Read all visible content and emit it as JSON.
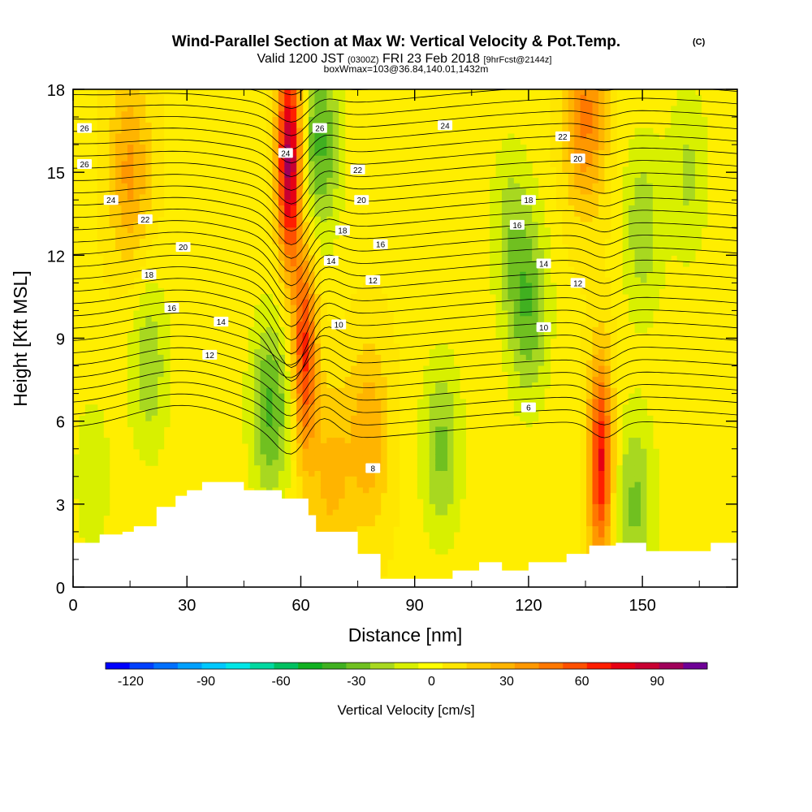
{
  "chart_data": {
    "type": "heatmap",
    "title": "Wind-Parallel Section at Max W: Vertical Velocity & Pot.Temp.",
    "title_mark": "(C)",
    "subtitle": {
      "prefix": "Valid 1200 JST",
      "zulu": "(0300Z)",
      "date": "FRI 23 Feb 2018",
      "forecast": "[9hrFcst@2144z]"
    },
    "box_info": "boxWmax=103@36.84,140.01,1432m",
    "xlabel": "Distance [nm]",
    "ylabel": "Height [Kft MSL]",
    "xlim": [
      0,
      175
    ],
    "ylim": [
      0,
      18
    ],
    "x_ticks": [
      0,
      30,
      60,
      90,
      120,
      150
    ],
    "y_ticks": [
      0,
      3,
      6,
      9,
      12,
      15,
      18
    ],
    "colorbar": {
      "title": "Vertical Velocity [cm/s]",
      "min": -130,
      "max": 110,
      "step": 10,
      "tick_values": [
        -120,
        -90,
        -60,
        -30,
        0,
        30,
        60,
        90
      ],
      "colors": [
        "#0000ff",
        "#0040ff",
        "#0070ff",
        "#00a0ff",
        "#00c8ff",
        "#00e6e6",
        "#00d8a0",
        "#00c060",
        "#10b020",
        "#40b020",
        "#70c020",
        "#a8d820",
        "#d8f000",
        "#ffff00",
        "#ffe600",
        "#ffcc00",
        "#ffb400",
        "#ff9800",
        "#ff7800",
        "#ff5000",
        "#ff1e00",
        "#e60014",
        "#c80032",
        "#a0005a",
        "#6e0096"
      ]
    },
    "vertical_velocity_features": [
      {
        "x": 15,
        "z": 15,
        "w": 35
      },
      {
        "x": 20,
        "z": 8,
        "w": -25
      },
      {
        "x": 5,
        "z": 4,
        "w": -15
      },
      {
        "x": 52,
        "z": 6.5,
        "w": -40
      },
      {
        "x": 57,
        "z": 15.5,
        "w": 100
      },
      {
        "x": 61,
        "z": 8.5,
        "w": 65
      },
      {
        "x": 65,
        "z": 16,
        "w": -40
      },
      {
        "x": 68,
        "z": 4,
        "w": 25
      },
      {
        "x": 78,
        "z": 5.5,
        "w": 30
      },
      {
        "x": 97,
        "z": 5,
        "w": -30
      },
      {
        "x": 115,
        "z": 13,
        "w": -20
      },
      {
        "x": 120,
        "z": 10,
        "w": -35
      },
      {
        "x": 135,
        "z": 17,
        "w": 45
      },
      {
        "x": 139,
        "z": 4.5,
        "w": 75
      },
      {
        "x": 148,
        "z": 3,
        "w": -30
      },
      {
        "x": 150,
        "z": 13,
        "w": -25
      },
      {
        "x": 162,
        "z": 15,
        "w": -20
      }
    ],
    "terrain": {
      "x": [
        0,
        7,
        7,
        13,
        13,
        16,
        16,
        22,
        22,
        27,
        27,
        30,
        30,
        34,
        34,
        45,
        45,
        55,
        55,
        62,
        62,
        64,
        64,
        75,
        75,
        81,
        81,
        100,
        100,
        107,
        107,
        113,
        113,
        120,
        120,
        130,
        130,
        136,
        136,
        143,
        143,
        151,
        151,
        168,
        168,
        175
      ],
      "h": [
        1.6,
        1.6,
        1.9,
        1.9,
        2.0,
        2.0,
        2.2,
        2.2,
        2.9,
        2.9,
        3.3,
        3.3,
        3.5,
        3.5,
        3.8,
        3.8,
        3.5,
        3.5,
        3.2,
        3.2,
        2.6,
        2.6,
        2.0,
        2.0,
        1.2,
        1.2,
        0.3,
        0.3,
        0.6,
        0.6,
        0.9,
        0.9,
        0.6,
        0.6,
        0.9,
        0.9,
        1.2,
        1.2,
        1.5,
        1.5,
        1.6,
        1.6,
        1.3,
        1.3,
        1.6,
        1.6
      ]
    },
    "theta_contours": [
      {
        "label": "6",
        "label_x": 120,
        "label_z": 6.5
      },
      {
        "label": "8",
        "label_x": 79,
        "label_z": 4.3
      },
      {
        "label": "10",
        "label_x": 70,
        "label_z": 9.5
      },
      {
        "label": "10",
        "label_x": 124,
        "label_z": 9.4
      },
      {
        "label": "12",
        "label_x": 36,
        "label_z": 8.4
      },
      {
        "label": "12",
        "label_x": 79,
        "label_z": 11.1
      },
      {
        "label": "12",
        "label_x": 133,
        "label_z": 11.0
      },
      {
        "label": "14",
        "label_x": 39,
        "label_z": 9.6
      },
      {
        "label": "14",
        "label_x": 68,
        "label_z": 11.8
      },
      {
        "label": "14",
        "label_x": 124,
        "label_z": 11.7
      },
      {
        "label": "16",
        "label_x": 26,
        "label_z": 10.1
      },
      {
        "label": "16",
        "label_x": 81,
        "label_z": 12.4
      },
      {
        "label": "16",
        "label_x": 117,
        "label_z": 13.1
      },
      {
        "label": "18",
        "label_x": 20,
        "label_z": 11.3
      },
      {
        "label": "18",
        "label_x": 71,
        "label_z": 12.9
      },
      {
        "label": "18",
        "label_x": 120,
        "label_z": 14.0
      },
      {
        "label": "20",
        "label_x": 29,
        "label_z": 12.3
      },
      {
        "label": "20",
        "label_x": 76,
        "label_z": 14.0
      },
      {
        "label": "20",
        "label_x": 133,
        "label_z": 15.5
      },
      {
        "label": "22",
        "label_x": 19,
        "label_z": 13.3
      },
      {
        "label": "22",
        "label_x": 75,
        "label_z": 15.1
      },
      {
        "label": "22",
        "label_x": 129,
        "label_z": 16.3
      },
      {
        "label": "24",
        "label_x": 10,
        "label_z": 14.0
      },
      {
        "label": "24",
        "label_x": 56,
        "label_z": 15.7
      },
      {
        "label": "24",
        "label_x": 98,
        "label_z": 16.7
      },
      {
        "label": "26",
        "label_x": 3,
        "label_z": 15.3
      },
      {
        "label": "26",
        "label_x": 3,
        "label_z": 16.6
      },
      {
        "label": "26",
        "label_x": 65,
        "label_z": 16.6
      }
    ]
  }
}
